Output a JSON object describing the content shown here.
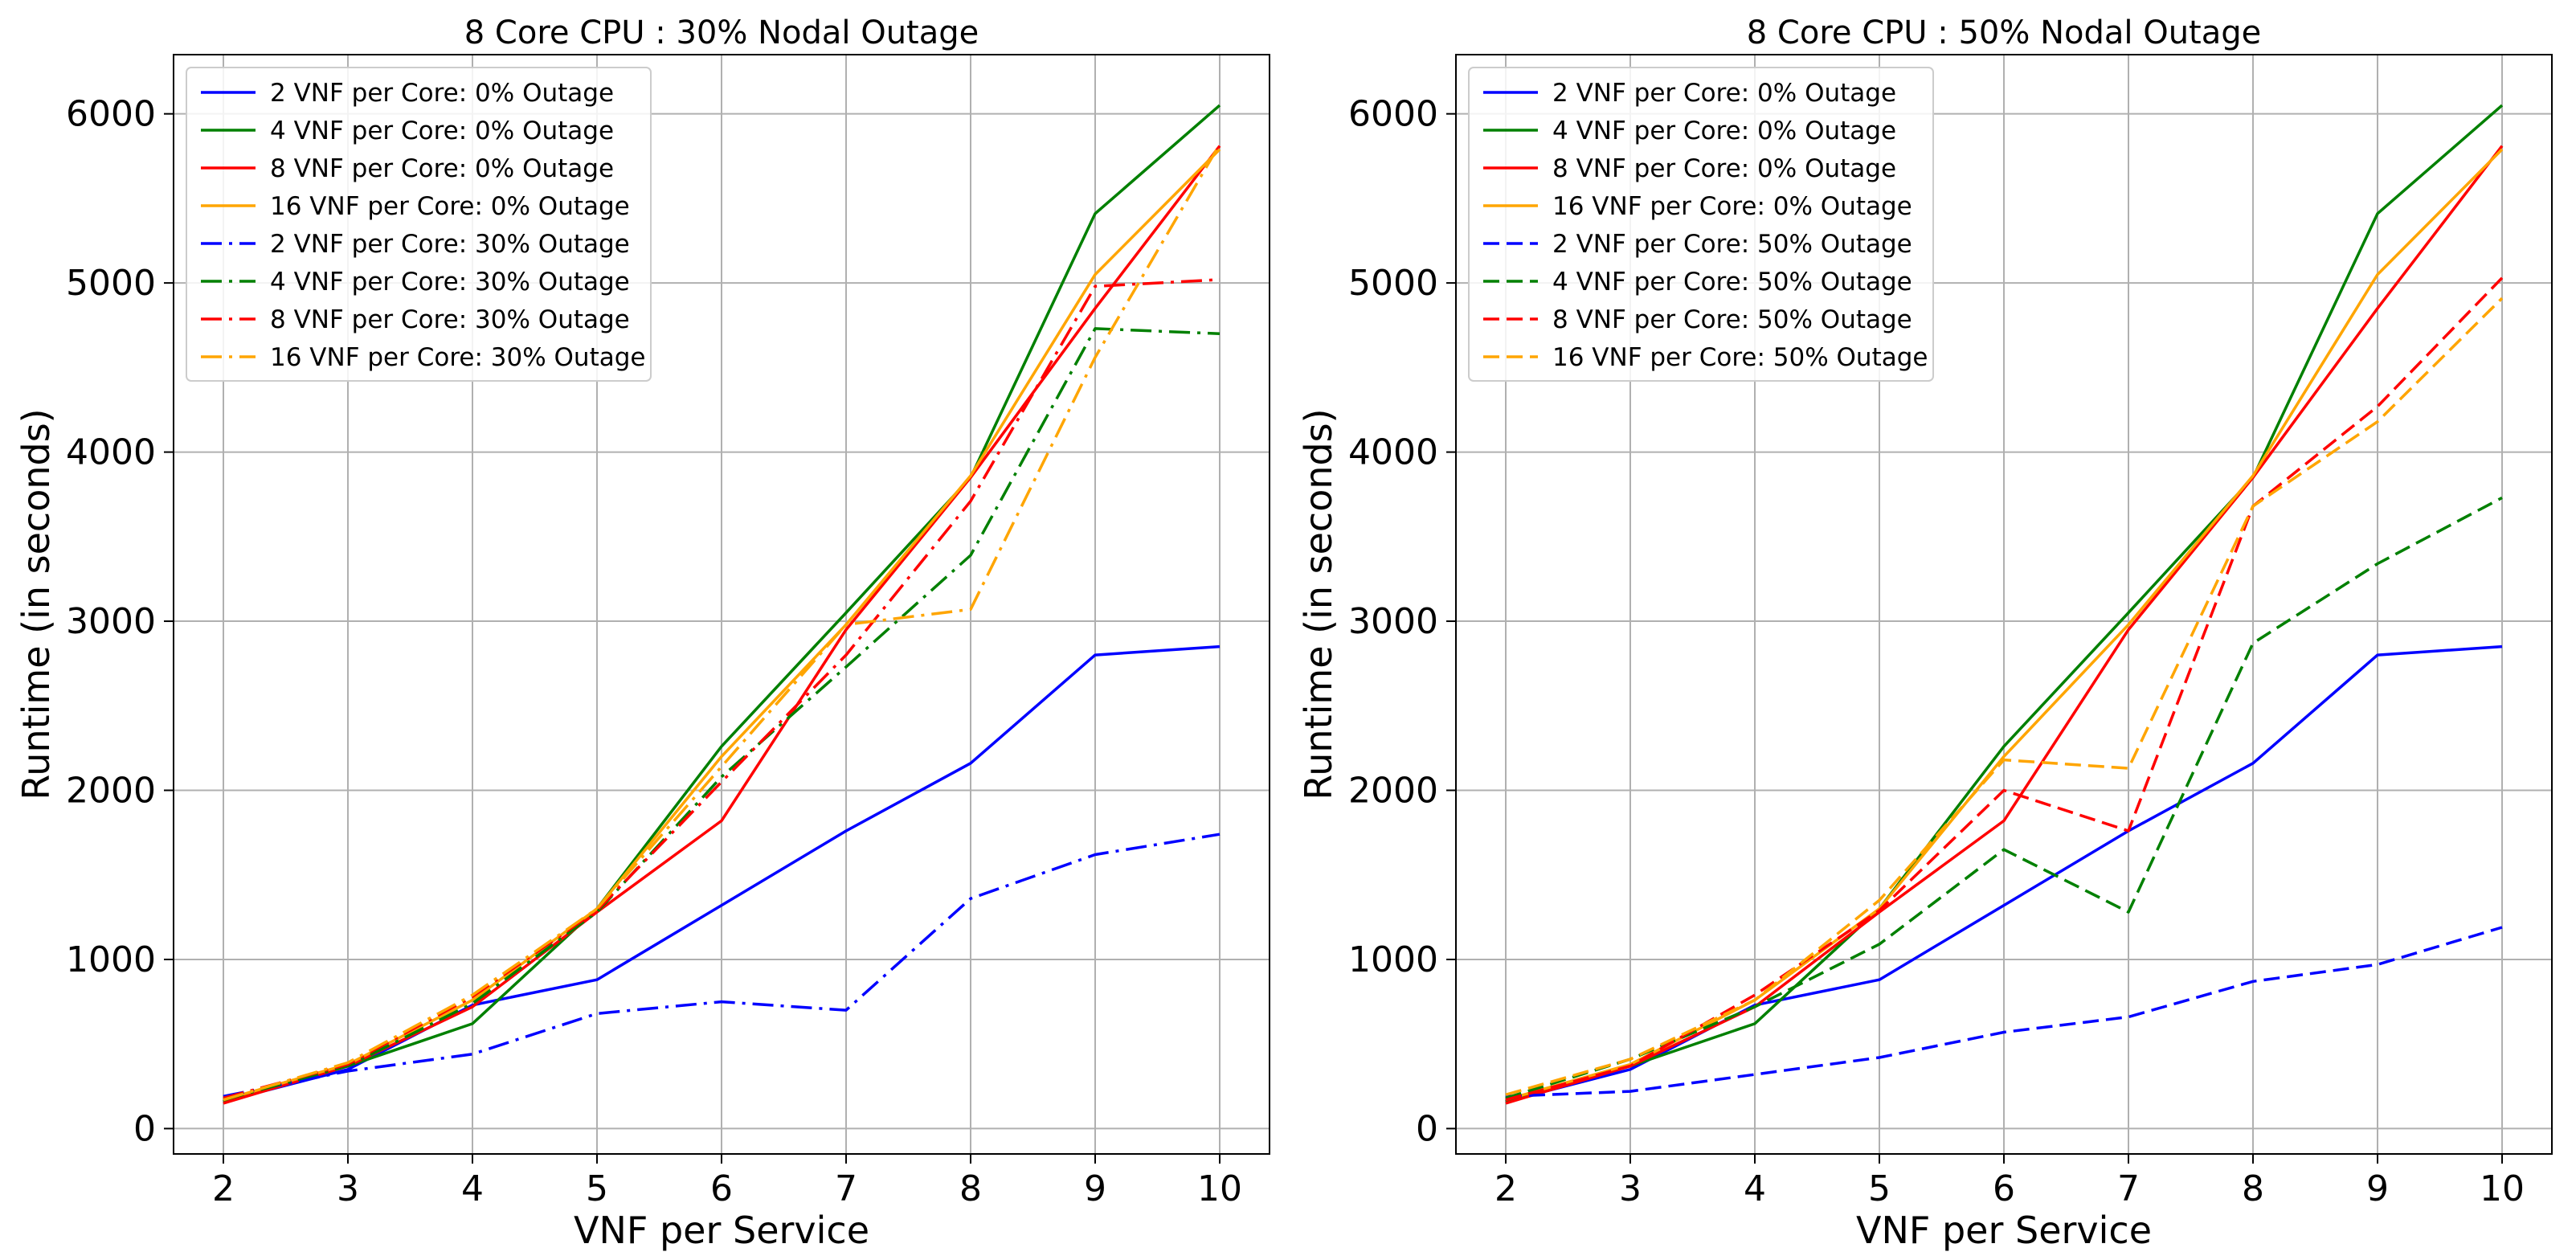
{
  "chart_data": [
    {
      "type": "line",
      "title": "8 Core CPU : 30% Nodal Outage",
      "xlabel": "VNF per Service",
      "ylabel": "Runtime (in seconds)",
      "x": [
        2,
        3,
        4,
        5,
        6,
        7,
        8,
        9,
        10
      ],
      "xlim": [
        1.6,
        10.4
      ],
      "ylim": [
        -150,
        6350
      ],
      "xticks": [
        2,
        3,
        4,
        5,
        6,
        7,
        8,
        9,
        10
      ],
      "yticks": [
        0,
        1000,
        2000,
        3000,
        4000,
        5000,
        6000
      ],
      "grid": true,
      "legend_position": "top-left",
      "series": [
        {
          "name": "2 VNF per Core: 0% Outage",
          "color": "#0000ff",
          "style": "solid",
          "values": [
            160,
            350,
            730,
            880,
            1320,
            1760,
            2160,
            2800,
            2850
          ]
        },
        {
          "name": "4 VNF per Core: 0% Outage",
          "color": "#008000",
          "style": "solid",
          "values": [
            160,
            370,
            620,
            1300,
            2260,
            3050,
            3850,
            5410,
            6050
          ]
        },
        {
          "name": "8 VNF per Core: 0% Outage",
          "color": "#ff0000",
          "style": "solid",
          "values": [
            150,
            370,
            720,
            1280,
            1820,
            2950,
            3850,
            4850,
            5810
          ]
        },
        {
          "name": "16 VNF per Core: 0% Outage",
          "color": "#ffa500",
          "style": "solid",
          "values": [
            170,
            380,
            760,
            1300,
            2200,
            2980,
            3860,
            5050,
            5790
          ]
        },
        {
          "name": "2 VNF per Core: 30% Outage",
          "color": "#0000ff",
          "style": "dashdot",
          "values": [
            190,
            340,
            440,
            680,
            750,
            700,
            1360,
            1620,
            1740
          ]
        },
        {
          "name": "4 VNF per Core: 30% Outage",
          "color": "#008000",
          "style": "dashdot",
          "values": [
            170,
            370,
            740,
            1280,
            2080,
            2730,
            3390,
            4730,
            4700
          ]
        },
        {
          "name": "8 VNF per Core: 30% Outage",
          "color": "#ff0000",
          "style": "dashdot",
          "values": [
            180,
            380,
            780,
            1290,
            2050,
            2800,
            3710,
            4980,
            5020
          ]
        },
        {
          "name": "16 VNF per Core: 30% Outage",
          "color": "#ffa500",
          "style": "dashdot",
          "values": [
            170,
            390,
            790,
            1300,
            2140,
            2980,
            3070,
            4560,
            5820
          ]
        }
      ]
    },
    {
      "type": "line",
      "title": "8 Core CPU : 50% Nodal Outage",
      "xlabel": "VNF per Service",
      "ylabel": "Runtime (in seconds)",
      "x": [
        2,
        3,
        4,
        5,
        6,
        7,
        8,
        9,
        10
      ],
      "xlim": [
        1.6,
        10.4
      ],
      "ylim": [
        -150,
        6350
      ],
      "xticks": [
        2,
        3,
        4,
        5,
        6,
        7,
        8,
        9,
        10
      ],
      "yticks": [
        0,
        1000,
        2000,
        3000,
        4000,
        5000,
        6000
      ],
      "grid": true,
      "legend_position": "top-left",
      "series": [
        {
          "name": "2 VNF per Core: 0% Outage",
          "color": "#0000ff",
          "style": "solid",
          "values": [
            160,
            350,
            730,
            880,
            1320,
            1760,
            2160,
            2800,
            2850
          ]
        },
        {
          "name": "4 VNF per Core: 0% Outage",
          "color": "#008000",
          "style": "solid",
          "values": [
            160,
            370,
            620,
            1300,
            2260,
            3050,
            3850,
            5410,
            6050
          ]
        },
        {
          "name": "8 VNF per Core: 0% Outage",
          "color": "#ff0000",
          "style": "solid",
          "values": [
            150,
            370,
            720,
            1280,
            1820,
            2950,
            3850,
            4850,
            5810
          ]
        },
        {
          "name": "16 VNF per Core: 0% Outage",
          "color": "#ffa500",
          "style": "solid",
          "values": [
            170,
            380,
            760,
            1300,
            2200,
            2980,
            3860,
            5050,
            5790
          ]
        },
        {
          "name": "2 VNF per Core: 50% Outage",
          "color": "#0000ff",
          "style": "dashed",
          "values": [
            190,
            220,
            320,
            420,
            570,
            660,
            870,
            970,
            1190
          ]
        },
        {
          "name": "4 VNF per Core: 50% Outage",
          "color": "#008000",
          "style": "dashed",
          "values": [
            180,
            410,
            720,
            1090,
            1650,
            1280,
            2870,
            3340,
            3730
          ]
        },
        {
          "name": "8 VNF per Core: 50% Outage",
          "color": "#ff0000",
          "style": "dashed",
          "values": [
            170,
            370,
            790,
            1290,
            2000,
            1760,
            3680,
            4270,
            5030
          ]
        },
        {
          "name": "16 VNF per Core: 50% Outage",
          "color": "#ffa500",
          "style": "dashed",
          "values": [
            200,
            410,
            760,
            1350,
            2180,
            2130,
            3680,
            4180,
            4910
          ]
        }
      ]
    }
  ]
}
